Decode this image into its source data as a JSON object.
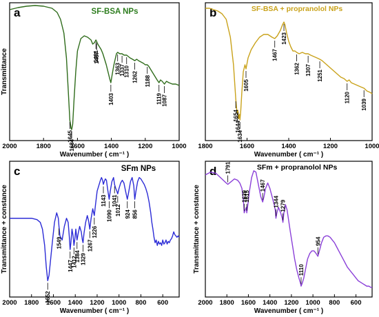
{
  "chart_data": [
    {
      "type": "line",
      "panel": "a",
      "title": "SF-BSA NPs",
      "title_color": "#2e7d1f",
      "xlabel": "Wavenumber ( cm⁻¹ )",
      "ylabel": "Transmittance",
      "xlim": [
        2000,
        1000
      ],
      "xticks": [
        2000,
        1800,
        1600,
        1400,
        1200,
        1000
      ],
      "ylim": [
        0,
        1
      ],
      "grid": false,
      "series": [
        {
          "color": "#2e6b1a",
          "x": [
            2000,
            1950,
            1900,
            1850,
            1800,
            1750,
            1720,
            1700,
            1680,
            1665,
            1655,
            1645,
            1638,
            1634,
            1628,
            1620,
            1610,
            1600,
            1580,
            1560,
            1540,
            1520,
            1510,
            1500,
            1491,
            1487,
            1480,
            1470,
            1460,
            1450,
            1440,
            1430,
            1420,
            1410,
            1403,
            1395,
            1385,
            1370,
            1363,
            1350,
            1337,
            1325,
            1310,
            1300,
            1290,
            1275,
            1262,
            1250,
            1240,
            1225,
            1210,
            1200,
            1188,
            1180,
            1170,
            1160,
            1150,
            1140,
            1130,
            1119,
            1110,
            1100,
            1087,
            1075,
            1060,
            1040,
            1020,
            1000
          ],
          "y": [
            0.95,
            0.965,
            0.975,
            0.98,
            0.975,
            0.96,
            0.93,
            0.88,
            0.78,
            0.6,
            0.38,
            0.15,
            0.09,
            0.08,
            0.12,
            0.3,
            0.5,
            0.65,
            0.74,
            0.76,
            0.75,
            0.73,
            0.7,
            0.71,
            0.73,
            0.72,
            0.7,
            0.68,
            0.66,
            0.63,
            0.59,
            0.55,
            0.5,
            0.45,
            0.42,
            0.48,
            0.55,
            0.63,
            0.64,
            0.63,
            0.63,
            0.62,
            0.62,
            0.61,
            0.6,
            0.59,
            0.58,
            0.59,
            0.58,
            0.57,
            0.56,
            0.55,
            0.55,
            0.54,
            0.52,
            0.5,
            0.48,
            0.46,
            0.44,
            0.42,
            0.44,
            0.43,
            0.41,
            0.43,
            0.42,
            0.41,
            0.41,
            0.4
          ]
        }
      ],
      "annotations": [
        {
          "label": "1645",
          "x": 1645
        },
        {
          "label": "1634",
          "x": 1634
        },
        {
          "label": "1491",
          "x": 1491
        },
        {
          "label": "1487",
          "x": 1487
        },
        {
          "label": "1403",
          "x": 1403
        },
        {
          "label": "1337",
          "x": 1337
        },
        {
          "label": "1310",
          "x": 1310
        },
        {
          "label": "1363",
          "x": 1363
        },
        {
          "label": "1262",
          "x": 1262
        },
        {
          "label": "1188",
          "x": 1188
        },
        {
          "label": "1119",
          "x": 1119
        },
        {
          "label": "1087",
          "x": 1087
        }
      ]
    },
    {
      "type": "line",
      "panel": "b",
      "title": "SF-BSA + propranolol NPs",
      "title_color": "#c9a21a",
      "xlabel": "Wavenumber ( cm⁻¹ )",
      "ylabel": "",
      "xlim": [
        1800,
        1000
      ],
      "xticks": [
        1800,
        1600,
        1400,
        1200,
        1000
      ],
      "ylim": [
        0,
        1
      ],
      "grid": false,
      "series": [
        {
          "color": "#c9a21a",
          "x": [
            1800,
            1780,
            1760,
            1740,
            1720,
            1700,
            1680,
            1665,
            1654,
            1648,
            1644,
            1640,
            1636,
            1634,
            1630,
            1625,
            1618,
            1610,
            1605,
            1595,
            1580,
            1560,
            1540,
            1520,
            1500,
            1480,
            1467,
            1455,
            1440,
            1430,
            1423,
            1418,
            1410,
            1400,
            1390,
            1380,
            1370,
            1362,
            1350,
            1335,
            1320,
            1307,
            1295,
            1280,
            1265,
            1251,
            1240,
            1225,
            1210,
            1195,
            1180,
            1165,
            1150,
            1135,
            1120,
            1110,
            1100,
            1085,
            1070,
            1055,
            1039,
            1025,
            1010,
            1000
          ],
          "y": [
            0.96,
            0.96,
            0.95,
            0.94,
            0.92,
            0.88,
            0.75,
            0.55,
            0.3,
            0.2,
            0.22,
            0.16,
            0.19,
            0.15,
            0.22,
            0.35,
            0.5,
            0.55,
            0.52,
            0.6,
            0.66,
            0.71,
            0.75,
            0.77,
            0.77,
            0.75,
            0.74,
            0.76,
            0.8,
            0.84,
            0.86,
            0.84,
            0.78,
            0.72,
            0.68,
            0.65,
            0.65,
            0.64,
            0.63,
            0.64,
            0.63,
            0.63,
            0.62,
            0.61,
            0.6,
            0.59,
            0.58,
            0.56,
            0.54,
            0.52,
            0.5,
            0.48,
            0.46,
            0.45,
            0.43,
            0.44,
            0.42,
            0.41,
            0.4,
            0.39,
            0.38,
            0.36,
            0.35,
            0.34
          ]
        }
      ],
      "annotations": [
        {
          "label": "1654",
          "x": 1654
        },
        {
          "label": "1644",
          "x": 1644
        },
        {
          "label": "1634",
          "x": 1634
        },
        {
          "label": "1605",
          "x": 1605
        },
        {
          "label": "1467",
          "x": 1467
        },
        {
          "label": "1423",
          "x": 1423
        },
        {
          "label": "1362",
          "x": 1362
        },
        {
          "label": "1307",
          "x": 1307
        },
        {
          "label": "1251",
          "x": 1251
        },
        {
          "label": "1120",
          "x": 1120
        },
        {
          "label": "1039",
          "x": 1039
        }
      ]
    },
    {
      "type": "line",
      "panel": "c",
      "title": "SFm NPs",
      "title_color": "#000000",
      "xlabel": "Wavenumber ( cm⁻¹ )",
      "ylabel": "Transmittance + constance",
      "xlim": [
        2000,
        450
      ],
      "xticks": [
        2000,
        1800,
        1600,
        1400,
        1200,
        1000,
        800,
        600
      ],
      "ylim": [
        0,
        1
      ],
      "grid": false,
      "series": [
        {
          "color": "#2b2bd6",
          "x": [
            2000,
            1950,
            1900,
            1850,
            1800,
            1750,
            1720,
            1700,
            1680,
            1665,
            1652,
            1640,
            1625,
            1610,
            1590,
            1570,
            1555,
            1549,
            1540,
            1520,
            1500,
            1480,
            1465,
            1455,
            1447,
            1440,
            1430,
            1420,
            1412,
            1405,
            1395,
            1384,
            1375,
            1360,
            1345,
            1335,
            1329,
            1320,
            1305,
            1290,
            1278,
            1267,
            1255,
            1240,
            1226,
            1215,
            1200,
            1185,
            1170,
            1160,
            1150,
            1143,
            1135,
            1125,
            1115,
            1105,
            1090,
            1080,
            1065,
            1050,
            1041,
            1030,
            1020,
            1012,
            1000,
            985,
            970,
            955,
            940,
            924,
            910,
            895,
            880,
            865,
            856,
            845,
            830,
            815,
            800,
            785,
            770,
            755,
            740,
            725,
            710,
            700,
            690,
            680,
            670,
            660,
            650,
            640,
            630,
            620,
            610,
            600,
            590,
            580,
            570,
            560,
            550,
            540,
            530,
            520,
            510,
            500,
            490,
            480,
            470,
            460,
            450
          ],
          "y": [
            0.58,
            0.58,
            0.58,
            0.58,
            0.58,
            0.57,
            0.55,
            0.5,
            0.38,
            0.22,
            0.12,
            0.16,
            0.28,
            0.4,
            0.55,
            0.62,
            0.58,
            0.52,
            0.45,
            0.42,
            0.52,
            0.58,
            0.55,
            0.45,
            0.35,
            0.4,
            0.5,
            0.45,
            0.38,
            0.42,
            0.5,
            0.42,
            0.46,
            0.52,
            0.48,
            0.42,
            0.4,
            0.47,
            0.55,
            0.6,
            0.56,
            0.5,
            0.58,
            0.65,
            0.6,
            0.68,
            0.78,
            0.82,
            0.86,
            0.88,
            0.86,
            0.83,
            0.85,
            0.87,
            0.86,
            0.8,
            0.72,
            0.78,
            0.85,
            0.88,
            0.83,
            0.8,
            0.78,
            0.76,
            0.8,
            0.84,
            0.86,
            0.84,
            0.78,
            0.72,
            0.78,
            0.85,
            0.88,
            0.82,
            0.72,
            0.78,
            0.85,
            0.88,
            0.87,
            0.85,
            0.83,
            0.8,
            0.76,
            0.7,
            0.62,
            0.55,
            0.5,
            0.44,
            0.4,
            0.42,
            0.38,
            0.41,
            0.39,
            0.4,
            0.38,
            0.42,
            0.39,
            0.4,
            0.42,
            0.39,
            0.41,
            0.4,
            0.42,
            0.43,
            0.45,
            0.48,
            0.46,
            0.45,
            0.44,
            0.45,
            0.44
          ]
        }
      ],
      "annotations": [
        {
          "label": "1652",
          "x": 1652
        },
        {
          "label": "1549",
          "x": 1549
        },
        {
          "label": "1447",
          "x": 1447
        },
        {
          "label": "1412",
          "x": 1412
        },
        {
          "label": "1384",
          "x": 1384
        },
        {
          "label": "1329",
          "x": 1329
        },
        {
          "label": "1267",
          "x": 1267
        },
        {
          "label": "1226",
          "x": 1226
        },
        {
          "label": "1143",
          "x": 1143
        },
        {
          "label": "1090",
          "x": 1090
        },
        {
          "label": "1041",
          "x": 1041
        },
        {
          "label": "1012",
          "x": 1012
        },
        {
          "label": "924",
          "x": 924
        },
        {
          "label": "856",
          "x": 856
        }
      ]
    },
    {
      "type": "line",
      "panel": "d",
      "title": "SFm + propranolol NPs",
      "title_color": "#000000",
      "xlabel": "Wavenumber ( cm⁻¹ )",
      "ylabel": "Transmittance + constance",
      "xlim": [
        2000,
        450
      ],
      "xticks": [
        2000,
        1800,
        1600,
        1400,
        1200,
        1000,
        800,
        600
      ],
      "ylim": [
        0,
        1
      ],
      "grid": false,
      "series": [
        {
          "color": "#8a3fd8",
          "x": [
            2000,
            1950,
            1900,
            1860,
            1820,
            1791,
            1760,
            1730,
            1700,
            1680,
            1660,
            1645,
            1639,
            1630,
            1620,
            1615,
            1605,
            1590,
            1570,
            1550,
            1530,
            1515,
            1500,
            1485,
            1467,
            1455,
            1440,
            1420,
            1400,
            1380,
            1360,
            1350,
            1344,
            1335,
            1320,
            1300,
            1285,
            1279,
            1270,
            1255,
            1240,
            1225,
            1210,
            1190,
            1170,
            1150,
            1130,
            1115,
            1110,
            1100,
            1085,
            1070,
            1050,
            1030,
            1010,
            990,
            970,
            954,
            940,
            920,
            900,
            880,
            860,
            840,
            820,
            800,
            780,
            760,
            740,
            720,
            700,
            680,
            660,
            640,
            620,
            600,
            580,
            560,
            540,
            520,
            500,
            480,
            460,
            450
          ],
          "y": [
            0.9,
            0.92,
            0.91,
            0.88,
            0.85,
            0.83,
            0.85,
            0.87,
            0.86,
            0.84,
            0.8,
            0.7,
            0.62,
            0.64,
            0.66,
            0.62,
            0.68,
            0.78,
            0.88,
            0.93,
            0.92,
            0.86,
            0.8,
            0.74,
            0.7,
            0.74,
            0.8,
            0.84,
            0.8,
            0.74,
            0.68,
            0.64,
            0.58,
            0.62,
            0.66,
            0.62,
            0.58,
            0.55,
            0.62,
            0.68,
            0.64,
            0.56,
            0.48,
            0.38,
            0.28,
            0.2,
            0.14,
            0.1,
            0.08,
            0.1,
            0.14,
            0.2,
            0.28,
            0.32,
            0.34,
            0.34,
            0.32,
            0.3,
            0.34,
            0.4,
            0.44,
            0.45,
            0.45,
            0.44,
            0.42,
            0.4,
            0.37,
            0.34,
            0.31,
            0.28,
            0.25,
            0.22,
            0.2,
            0.18,
            0.16,
            0.14,
            0.12,
            0.11,
            0.1,
            0.09,
            0.08,
            0.08,
            0.07,
            0.07
          ]
        }
      ],
      "annotations": [
        {
          "label": "1791",
          "x": 1791
        },
        {
          "label": "1639",
          "x": 1639
        },
        {
          "label": "1615",
          "x": 1615
        },
        {
          "label": "1467",
          "x": 1467
        },
        {
          "label": "1344",
          "x": 1344
        },
        {
          "label": "1279",
          "x": 1279
        },
        {
          "label": "1110",
          "x": 1110
        },
        {
          "label": "954",
          "x": 954
        }
      ]
    }
  ]
}
